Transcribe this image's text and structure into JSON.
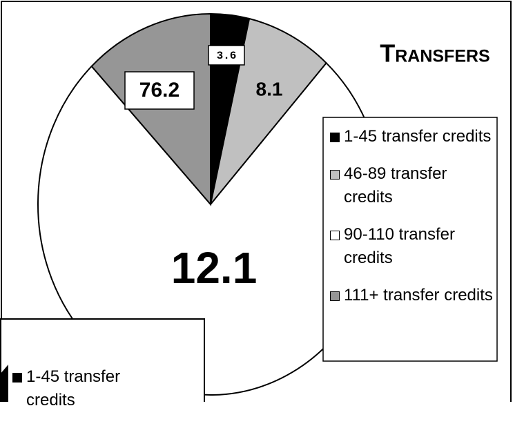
{
  "chart_data": {
    "type": "pie",
    "title": "Transfers",
    "categories": [
      "1-45 transfer credits",
      "46-89 transfer credits",
      "90-110 transfer credits",
      "111+ transfer credits"
    ],
    "values": [
      3.6,
      8.1,
      76.2,
      12.1
    ],
    "colors": [
      "#000000",
      "#c0c0c0",
      "#ffffff",
      "#969696"
    ]
  },
  "overlay_window": {
    "legend": [
      {
        "label": "1-45 transfer credits",
        "color": "#000000"
      }
    ]
  }
}
